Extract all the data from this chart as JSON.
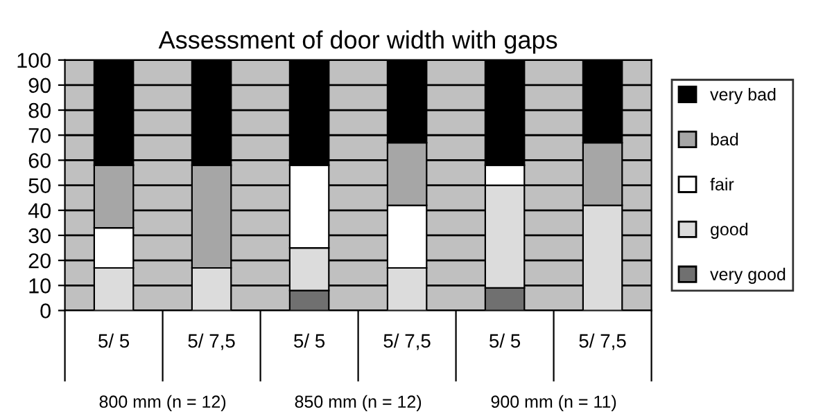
{
  "chart_data": {
    "type": "bar",
    "title": "Assessment of door width with gaps",
    "stacked": true,
    "categories": [
      "5/ 5",
      "5/ 7,5",
      "5/ 5",
      "5/ 7,5",
      "5/ 5",
      "5/ 7,5"
    ],
    "series": [
      {
        "name": "very good",
        "color": "#707070",
        "values": [
          0,
          0,
          8,
          0,
          9,
          0
        ]
      },
      {
        "name": "good",
        "color": "#dcdcdc",
        "values": [
          17,
          17,
          17,
          17,
          41,
          42
        ]
      },
      {
        "name": "fair",
        "color": "#ffffff",
        "values": [
          16,
          0,
          33,
          25,
          8,
          0
        ]
      },
      {
        "name": "bad",
        "color": "#a6a6a6",
        "values": [
          25,
          41,
          0,
          25,
          0,
          25
        ]
      },
      {
        "name": "very bad",
        "color": "#000000",
        "values": [
          42,
          42,
          42,
          33,
          42,
          33
        ]
      }
    ],
    "ylim": [
      0,
      100
    ],
    "yticks": [
      0,
      10,
      20,
      30,
      40,
      50,
      60,
      70,
      80,
      90,
      100
    ],
    "grid": "y",
    "legend": "right",
    "annotations": [
      "800 mm (n = 12)",
      "850 mm (n = 12)",
      "900 mm (n = 11)"
    ]
  }
}
